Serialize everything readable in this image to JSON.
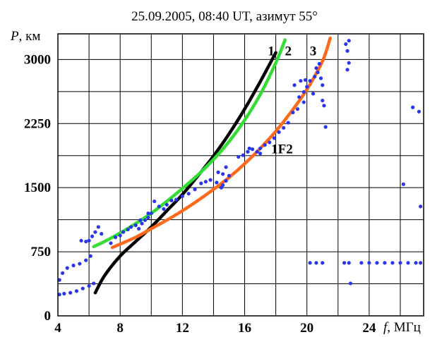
{
  "chart_data": {
    "type": "scatter",
    "title": "25.09.2005, 08:40 UT, азимут 55°",
    "xlabel_symbol": "f",
    "xlabel_unit": ", МГц",
    "ylabel_symbol": "P",
    "ylabel_unit": ", км",
    "xlim": [
      4,
      27.5
    ],
    "ylim": [
      0,
      3300
    ],
    "xticks": [
      4,
      8,
      12,
      16,
      20,
      24
    ],
    "yticks": [
      0,
      750,
      1500,
      2250,
      3000
    ],
    "grid": true,
    "curves": [
      {
        "name": "1",
        "color": "#000000",
        "points": [
          [
            6.4,
            270
          ],
          [
            7.0,
            470
          ],
          [
            8.0,
            700
          ],
          [
            9.0,
            870
          ],
          [
            10.0,
            1040
          ],
          [
            11.0,
            1230
          ],
          [
            12.0,
            1420
          ],
          [
            13.0,
            1640
          ],
          [
            14.0,
            1870
          ],
          [
            15.0,
            2130
          ],
          [
            16.0,
            2420
          ],
          [
            17.0,
            2740
          ],
          [
            18.0,
            3080
          ]
        ]
      },
      {
        "name": "2",
        "color": "#33dd33",
        "points": [
          [
            6.3,
            810
          ],
          [
            7.0,
            870
          ],
          [
            8.0,
            970
          ],
          [
            9.0,
            1080
          ],
          [
            10.0,
            1200
          ],
          [
            11.0,
            1340
          ],
          [
            12.0,
            1490
          ],
          [
            13.0,
            1650
          ],
          [
            14.0,
            1830
          ],
          [
            15.0,
            2040
          ],
          [
            16.0,
            2290
          ],
          [
            17.0,
            2590
          ],
          [
            18.0,
            2960
          ],
          [
            18.6,
            3230
          ]
        ]
      },
      {
        "name": "3",
        "color": "#ff6a1a",
        "points": [
          [
            7.5,
            800
          ],
          [
            9.0,
            920
          ],
          [
            10.0,
            1020
          ],
          [
            11.0,
            1120
          ],
          [
            12.0,
            1230
          ],
          [
            13.0,
            1350
          ],
          [
            14.0,
            1480
          ],
          [
            15.0,
            1620
          ],
          [
            16.0,
            1780
          ],
          [
            17.0,
            1960
          ],
          [
            18.0,
            2160
          ],
          [
            19.0,
            2390
          ],
          [
            20.0,
            2650
          ],
          [
            21.0,
            2980
          ],
          [
            21.5,
            3250
          ]
        ]
      }
    ],
    "labels": [
      {
        "text": "1",
        "x": 17.7,
        "y": 3050
      },
      {
        "text": "2",
        "x": 18.8,
        "y": 3050
      },
      {
        "text": "3",
        "x": 20.4,
        "y": 3050
      },
      {
        "text": "1F2",
        "x": 18.4,
        "y": 1900
      }
    ],
    "scatter": {
      "name": "",
      "color": "#2a35ee",
      "points": [
        [
          4.1,
          250
        ],
        [
          4.4,
          260
        ],
        [
          4.8,
          270
        ],
        [
          5.2,
          290
        ],
        [
          5.6,
          320
        ],
        [
          6.0,
          350
        ],
        [
          6.3,
          380
        ],
        [
          4.1,
          420
        ],
        [
          4.3,
          500
        ],
        [
          4.6,
          560
        ],
        [
          5.0,
          590
        ],
        [
          5.4,
          610
        ],
        [
          5.8,
          650
        ],
        [
          6.1,
          700
        ],
        [
          5.5,
          880
        ],
        [
          5.8,
          870
        ],
        [
          6.0,
          880
        ],
        [
          6.2,
          930
        ],
        [
          6.4,
          980
        ],
        [
          6.6,
          1040
        ],
        [
          6.8,
          960
        ],
        [
          7.4,
          850
        ],
        [
          7.7,
          920
        ],
        [
          8.0,
          940
        ],
        [
          8.2,
          980
        ],
        [
          8.5,
          1010
        ],
        [
          8.7,
          1040
        ],
        [
          9.0,
          1060
        ],
        [
          9.2,
          1020
        ],
        [
          9.4,
          1080
        ],
        [
          9.6,
          1120
        ],
        [
          9.8,
          1150
        ],
        [
          10.0,
          1200
        ],
        [
          10.2,
          1340
        ],
        [
          10.5,
          1280
        ],
        [
          10.8,
          1250
        ],
        [
          11.0,
          1300
        ],
        [
          9.3,
          1120
        ],
        [
          9.8,
          1200
        ],
        [
          11.3,
          1350
        ],
        [
          11.6,
          1360
        ],
        [
          12.0,
          1400
        ],
        [
          12.4,
          1430
        ],
        [
          12.8,
          1480
        ],
        [
          13.2,
          1550
        ],
        [
          13.5,
          1570
        ],
        [
          13.8,
          1590
        ],
        [
          14.2,
          1560
        ],
        [
          14.6,
          1660
        ],
        [
          14.8,
          1740
        ],
        [
          14.3,
          1680
        ],
        [
          14.5,
          1500
        ],
        [
          14.6,
          1530
        ],
        [
          14.8,
          1580
        ],
        [
          15.0,
          1640
        ],
        [
          15.6,
          1860
        ],
        [
          15.9,
          1880
        ],
        [
          16.2,
          1920
        ],
        [
          16.5,
          1950
        ],
        [
          16.8,
          1920
        ],
        [
          17.0,
          1900
        ],
        [
          16.3,
          1960
        ],
        [
          17.0,
          1960
        ],
        [
          17.3,
          2000
        ],
        [
          17.6,
          2030
        ],
        [
          17.9,
          2080
        ],
        [
          18.2,
          2150
        ],
        [
          18.5,
          2200
        ],
        [
          18.8,
          2260
        ],
        [
          19.1,
          2380
        ],
        [
          19.4,
          2420
        ],
        [
          19.8,
          2500
        ],
        [
          19.5,
          2560
        ],
        [
          19.8,
          2620
        ],
        [
          20.0,
          2680
        ],
        [
          20.2,
          2750
        ],
        [
          20.4,
          2600
        ],
        [
          20.5,
          2800
        ],
        [
          20.6,
          2900
        ],
        [
          20.7,
          2850
        ],
        [
          20.8,
          2950
        ],
        [
          20.9,
          2780
        ],
        [
          21.0,
          2700
        ],
        [
          19.2,
          2700
        ],
        [
          19.6,
          2750
        ],
        [
          19.9,
          2760
        ],
        [
          21.0,
          2520
        ],
        [
          21.1,
          2460
        ],
        [
          21.2,
          2210
        ],
        [
          20.2,
          620
        ],
        [
          20.6,
          620
        ],
        [
          21.0,
          620
        ],
        [
          22.4,
          620
        ],
        [
          22.7,
          620
        ],
        [
          23.5,
          620
        ],
        [
          24.0,
          620
        ],
        [
          24.5,
          620
        ],
        [
          25.0,
          620
        ],
        [
          25.5,
          620
        ],
        [
          26.0,
          620
        ],
        [
          26.5,
          620
        ],
        [
          27.0,
          620
        ],
        [
          27.3,
          620
        ],
        [
          22.5,
          3180
        ],
        [
          22.7,
          3220
        ],
        [
          22.6,
          3100
        ],
        [
          22.6,
          2880
        ],
        [
          22.7,
          2960
        ],
        [
          22.8,
          380
        ],
        [
          26.2,
          1540
        ],
        [
          26.8,
          2440
        ],
        [
          27.2,
          2390
        ],
        [
          27.3,
          1280
        ]
      ]
    }
  }
}
